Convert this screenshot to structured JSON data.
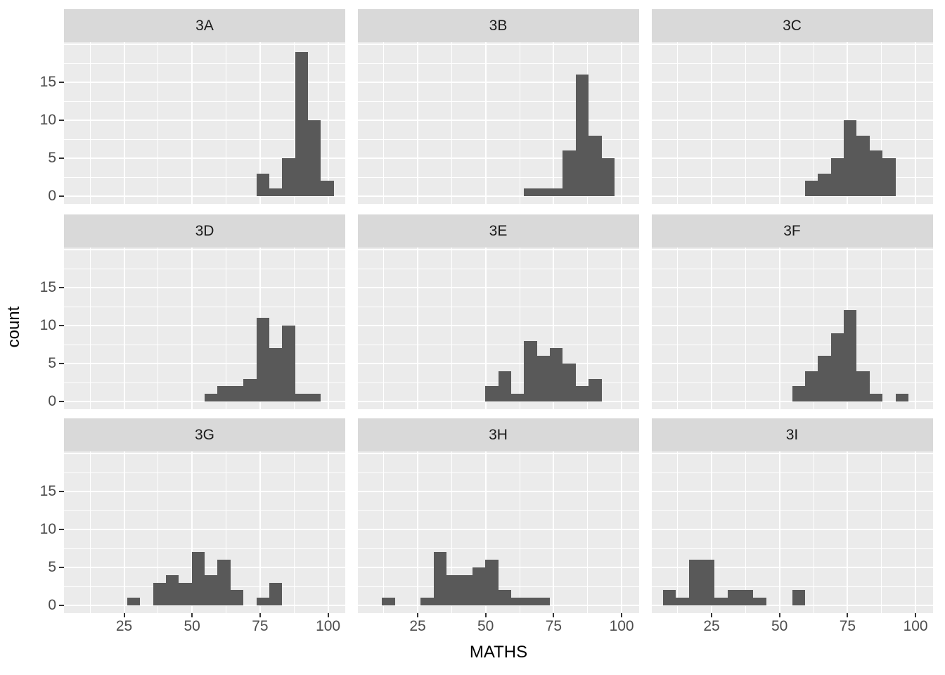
{
  "figure": {
    "background_color": "#FFFFFF",
    "panel_background_color": "#EBEBEB",
    "strip_background_color": "#D9D9D9",
    "strip_text_color": "#1A1A1A",
    "gridline_color": "#FFFFFF",
    "bar_color": "#595959",
    "axis_text_color": "#4D4D4D",
    "axis_title_color": "#000000",
    "tick_mark_color": "#333333"
  },
  "axes": {
    "x_title": "MATHS",
    "y_title": "count",
    "x_tick_labels": [
      "25",
      "50",
      "75",
      "100"
    ],
    "y_tick_labels": [
      "0",
      "5",
      "10",
      "15"
    ]
  },
  "chart_data": {
    "type": "bar",
    "subtype": "faceted_histogram",
    "xlabel": "MATHS",
    "ylabel": "count",
    "facet_labels": [
      "3A",
      "3B",
      "3C",
      "3D",
      "3E",
      "3F",
      "3G",
      "3H",
      "3I"
    ],
    "x_ticks": [
      25,
      50,
      75,
      100
    ],
    "y_ticks": [
      0,
      5,
      10,
      15
    ],
    "x_grid_major": [
      25,
      50,
      75,
      100
    ],
    "x_grid_minor": [
      12.5,
      37.5,
      62.5,
      87.5
    ],
    "y_grid_major": [
      0,
      5,
      10,
      15,
      20
    ],
    "y_grid_minor": [
      2.5,
      7.5,
      12.5,
      17.5
    ],
    "x_domain": [
      2.9,
      106.3
    ],
    "y_domain": [
      -1,
      20.3
    ],
    "binwidth": 4.75,
    "grid": true,
    "legend": "none",
    "facets": [
      {
        "label": "3A",
        "bars": [
          {
            "x": 76.0,
            "count": 3
          },
          {
            "x": 80.75,
            "count": 1
          },
          {
            "x": 85.5,
            "count": 5
          },
          {
            "x": 90.25,
            "count": 19
          },
          {
            "x": 95.0,
            "count": 10
          },
          {
            "x": 99.75,
            "count": 2
          }
        ]
      },
      {
        "label": "3B",
        "bars": [
          {
            "x": 66.5,
            "count": 1
          },
          {
            "x": 71.25,
            "count": 1
          },
          {
            "x": 76.0,
            "count": 1
          },
          {
            "x": 80.75,
            "count": 6
          },
          {
            "x": 85.5,
            "count": 16
          },
          {
            "x": 90.25,
            "count": 8
          },
          {
            "x": 95.0,
            "count": 5
          }
        ]
      },
      {
        "label": "3C",
        "bars": [
          {
            "x": 61.75,
            "count": 2
          },
          {
            "x": 66.5,
            "count": 3
          },
          {
            "x": 71.25,
            "count": 5
          },
          {
            "x": 76.0,
            "count": 10
          },
          {
            "x": 80.75,
            "count": 8
          },
          {
            "x": 85.5,
            "count": 6
          },
          {
            "x": 90.25,
            "count": 5
          }
        ]
      },
      {
        "label": "3D",
        "bars": [
          {
            "x": 57.0,
            "count": 1
          },
          {
            "x": 61.75,
            "count": 2
          },
          {
            "x": 66.5,
            "count": 2
          },
          {
            "x": 71.25,
            "count": 3
          },
          {
            "x": 76.0,
            "count": 11
          },
          {
            "x": 80.75,
            "count": 7
          },
          {
            "x": 85.5,
            "count": 10
          },
          {
            "x": 90.25,
            "count": 1
          },
          {
            "x": 95.0,
            "count": 1
          }
        ]
      },
      {
        "label": "3E",
        "bars": [
          {
            "x": 52.25,
            "count": 2
          },
          {
            "x": 57.0,
            "count": 4
          },
          {
            "x": 61.75,
            "count": 1
          },
          {
            "x": 66.5,
            "count": 8
          },
          {
            "x": 71.25,
            "count": 6
          },
          {
            "x": 76.0,
            "count": 7
          },
          {
            "x": 80.75,
            "count": 5
          },
          {
            "x": 85.5,
            "count": 2
          },
          {
            "x": 90.25,
            "count": 3
          }
        ]
      },
      {
        "label": "3F",
        "bars": [
          {
            "x": 57.0,
            "count": 2
          },
          {
            "x": 61.75,
            "count": 4
          },
          {
            "x": 66.5,
            "count": 6
          },
          {
            "x": 71.25,
            "count": 9
          },
          {
            "x": 76.0,
            "count": 12
          },
          {
            "x": 80.75,
            "count": 4
          },
          {
            "x": 85.5,
            "count": 1
          },
          {
            "x": 95.0,
            "count": 1
          }
        ]
      },
      {
        "label": "3G",
        "bars": [
          {
            "x": 28.5,
            "count": 1
          },
          {
            "x": 38.0,
            "count": 3
          },
          {
            "x": 42.75,
            "count": 4
          },
          {
            "x": 47.5,
            "count": 3
          },
          {
            "x": 52.25,
            "count": 7
          },
          {
            "x": 57.0,
            "count": 4
          },
          {
            "x": 61.75,
            "count": 6
          },
          {
            "x": 66.5,
            "count": 2
          },
          {
            "x": 76.0,
            "count": 1
          },
          {
            "x": 80.75,
            "count": 3
          }
        ]
      },
      {
        "label": "3H",
        "bars": [
          {
            "x": 14.25,
            "count": 1
          },
          {
            "x": 28.5,
            "count": 1
          },
          {
            "x": 33.25,
            "count": 7
          },
          {
            "x": 38.0,
            "count": 4
          },
          {
            "x": 42.75,
            "count": 4
          },
          {
            "x": 47.5,
            "count": 5
          },
          {
            "x": 52.25,
            "count": 6
          },
          {
            "x": 57.0,
            "count": 2
          },
          {
            "x": 61.75,
            "count": 1
          },
          {
            "x": 66.5,
            "count": 1
          },
          {
            "x": 71.25,
            "count": 1
          }
        ]
      },
      {
        "label": "3I",
        "bars": [
          {
            "x": 9.5,
            "count": 2
          },
          {
            "x": 14.25,
            "count": 1
          },
          {
            "x": 19.0,
            "count": 6
          },
          {
            "x": 23.75,
            "count": 6
          },
          {
            "x": 28.5,
            "count": 1
          },
          {
            "x": 33.25,
            "count": 2
          },
          {
            "x": 38.0,
            "count": 2
          },
          {
            "x": 42.75,
            "count": 1
          },
          {
            "x": 57.0,
            "count": 2
          }
        ]
      }
    ]
  }
}
